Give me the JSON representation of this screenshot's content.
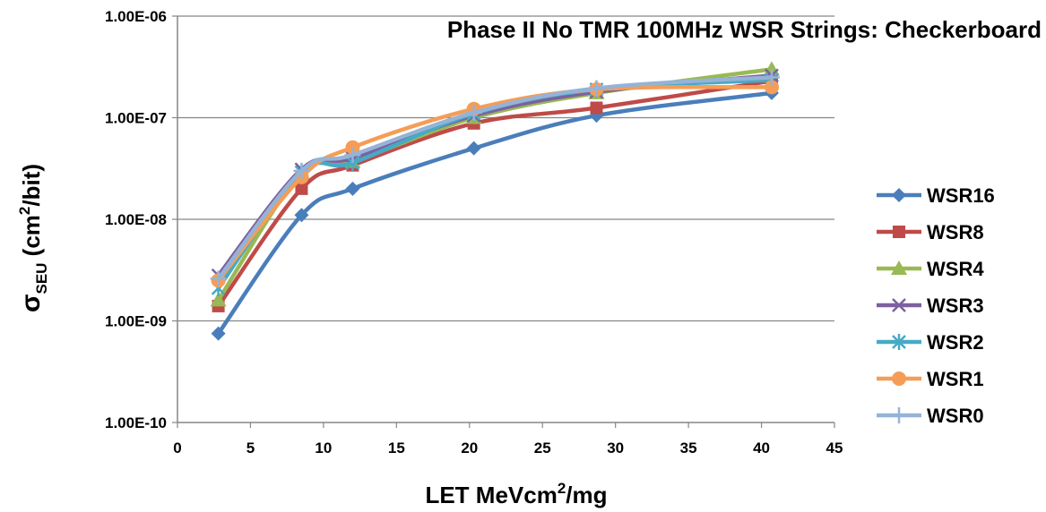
{
  "chart_data": {
    "type": "line",
    "title": "Phase II No TMR 100MHz WSR Strings: Checkerboard",
    "xlabel": {
      "main": "LET MeVcm",
      "sup": "2",
      "rest": "/mg"
    },
    "ylabel": {
      "sigma": "σ",
      "sub": "SEU",
      "main": " (cm",
      "sup": "2",
      "rest": "/bit)"
    },
    "xlim": [
      0,
      45
    ],
    "ylim": [
      1e-10,
      1e-06
    ],
    "yscale": "log",
    "x_ticks": [
      "0",
      "5",
      "10",
      "15",
      "20",
      "25",
      "30",
      "35",
      "40",
      "45"
    ],
    "y_ticks": [
      "1.00E-10",
      "1.00E-09",
      "1.00E-08",
      "1.00E-07",
      "1.00E-06"
    ],
    "grid": "horizontal",
    "legend_position": "right",
    "x": [
      2.8,
      8.5,
      12.0,
      20.3,
      28.7,
      40.7
    ],
    "series": [
      {
        "name": "WSR16",
        "color": "#4A7EBB",
        "marker": "diamond",
        "values": [
          7.5e-10,
          1.1e-08,
          2e-08,
          5e-08,
          1.05e-07,
          1.75e-07
        ]
      },
      {
        "name": "WSR8",
        "color": "#BE4B48",
        "marker": "square",
        "values": [
          1.4e-09,
          2e-08,
          3.4e-08,
          8.8e-08,
          1.25e-07,
          2.3e-07
        ]
      },
      {
        "name": "WSR4",
        "color": "#98B954",
        "marker": "triangle",
        "values": [
          1.6e-09,
          2.9e-08,
          3.7e-08,
          1e-07,
          1.75e-07,
          3e-07
        ]
      },
      {
        "name": "WSR3",
        "color": "#7D60A0",
        "marker": "x",
        "values": [
          2.8e-09,
          3.1e-08,
          4e-08,
          1.05e-07,
          1.8e-07,
          2.6e-07
        ]
      },
      {
        "name": "WSR2",
        "color": "#46AAC5",
        "marker": "star",
        "values": [
          2.1e-09,
          2.9e-08,
          3.6e-08,
          1.1e-07,
          1.9e-07,
          2.35e-07
        ]
      },
      {
        "name": "WSR1",
        "color": "#F59D56",
        "marker": "circle",
        "values": [
          2.5e-09,
          2.6e-08,
          5.1e-08,
          1.22e-07,
          1.9e-07,
          2e-07
        ]
      },
      {
        "name": "WSR0",
        "color": "#95B3D7",
        "marker": "plus",
        "values": [
          2.6e-09,
          3e-08,
          4.3e-08,
          1.12e-07,
          1.95e-07,
          2.5e-07
        ]
      }
    ]
  }
}
